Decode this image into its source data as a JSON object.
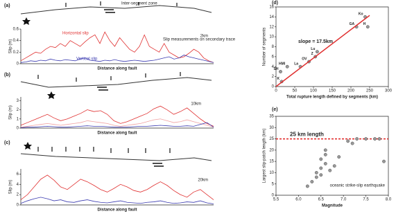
{
  "chart_data": [
    {
      "type": "line",
      "panel_label": "(a)",
      "ylabel": "Slip (m)",
      "xlabel": "Distance along fault",
      "ylim": [
        0,
        0.6
      ],
      "yticks": [
        0,
        0.2,
        0.4,
        0.6
      ],
      "annotations": [
        "Inter-segment zone",
        "Slip measurements on secondary trace",
        "2km"
      ],
      "series": [
        {
          "name": "Horizontal slip",
          "color": "#e03030",
          "values": [
            0.05,
            0.1,
            0.15,
            0.2,
            0.18,
            0.25,
            0.3,
            0.28,
            0.35,
            0.3,
            0.4,
            0.35,
            0.3,
            0.38,
            0.45,
            0.5,
            0.35,
            0.55,
            0.4,
            0.3,
            0.45,
            0.35,
            0.25,
            0.2,
            0.3,
            0.5,
            0.3,
            0.25,
            0.2,
            0.35,
            0.2,
            0.15,
            0.1,
            0.12,
            0.18,
            0.25,
            0.2,
            0.1,
            0.05,
            0.02
          ]
        },
        {
          "name": "Vertical slip",
          "color": "#3a3ab0",
          "values": [
            0.02,
            0.03,
            0.05,
            0.04,
            0.06,
            0.05,
            0.08,
            0.06,
            0.05,
            0.07,
            0.06,
            0.05,
            0.08,
            0.1,
            0.06,
            0.05,
            0.04,
            0.06,
            0.05,
            0.07,
            0.05,
            0.04,
            0.05,
            0.06,
            0.05,
            0.04,
            0.05,
            0.06,
            0.08,
            0.1,
            0.12,
            0.08,
            0.1,
            0.15,
            0.12,
            0.1,
            0.08,
            0.06,
            0.04,
            0.02
          ]
        }
      ]
    },
    {
      "type": "line",
      "panel_label": "(b)",
      "ylabel": "Slip (m)",
      "xlabel": "Distance along fault",
      "ylim": [
        0,
        3.4
      ],
      "yticks": [
        0,
        1,
        2,
        3
      ],
      "annotations": [
        "10km"
      ],
      "series": [
        {
          "color": "#e03030",
          "values": [
            0.3,
            0.6,
            0.9,
            1.2,
            1.5,
            1.1,
            0.8,
            1.0,
            1.3,
            1.6,
            2.0,
            1.8,
            1.9,
            1.5,
            0.8,
            0.5,
            0.7,
            1.0,
            1.3,
            1.6,
            2.1,
            2.4,
            2.0,
            1.5,
            1.8,
            2.2,
            1.6,
            1.0,
            0.5,
            0.2
          ]
        },
        {
          "color": "#f0a0a0",
          "values": [
            0.1,
            0.2,
            0.3,
            0.4,
            0.5,
            0.4,
            0.3,
            0.4,
            0.5,
            0.6,
            0.8,
            0.7,
            0.6,
            0.5,
            0.3,
            0.2,
            0.3,
            0.4,
            0.5,
            0.7,
            0.9,
            1.0,
            0.8,
            0.6,
            0.7,
            0.9,
            0.7,
            0.5,
            0.3,
            0.1
          ]
        },
        {
          "color": "#3a3ab0",
          "values": [
            0.05,
            0.1,
            0.1,
            0.15,
            0.2,
            0.15,
            0.1,
            0.1,
            0.15,
            0.2,
            0.25,
            0.2,
            0.2,
            0.15,
            0.1,
            0.1,
            0.1,
            0.15,
            0.2,
            0.2,
            0.25,
            0.3,
            0.25,
            0.2,
            0.2,
            0.25,
            0.2,
            0.4,
            0.6,
            0.1
          ]
        }
      ]
    },
    {
      "type": "line",
      "panel_label": "(c)",
      "ylabel": "Slip (m)",
      "xlabel": "Distance along fault",
      "ylim": [
        0,
        7
      ],
      "yticks": [
        0,
        2,
        4,
        6
      ],
      "annotations": [
        "20km"
      ],
      "series": [
        {
          "color": "#e03030",
          "values": [
            1.0,
            2.0,
            3.5,
            5.0,
            5.8,
            4.8,
            3.5,
            3.0,
            4.0,
            5.0,
            4.5,
            3.8,
            3.0,
            2.5,
            3.2,
            4.0,
            3.5,
            2.8,
            2.5,
            3.0,
            3.8,
            4.5,
            3.8,
            2.8,
            2.0,
            1.5,
            2.5,
            3.0,
            2.0,
            1.0
          ]
        },
        {
          "color": "#3a3ab0",
          "values": [
            0.3,
            0.8,
            1.2,
            1.5,
            1.2,
            0.8,
            1.0,
            0.6,
            0.5,
            0.8,
            1.0,
            0.7,
            0.5,
            0.4,
            0.6,
            0.8,
            0.5,
            0.4,
            0.3,
            0.5,
            0.6,
            0.8,
            0.5,
            0.3,
            0.4,
            0.6,
            0.5,
            0.8,
            0.4,
            0.2
          ]
        }
      ]
    },
    {
      "type": "scatter",
      "panel_label": "(d)",
      "xlabel": "Total rupture length defined by segments (km)",
      "ylabel": "Number of segments",
      "xlim": [
        0,
        300
      ],
      "xticks": [
        0,
        50,
        100,
        150,
        200,
        250,
        300
      ],
      "ylim": [
        0,
        16
      ],
      "yticks": [
        0,
        2,
        4,
        6,
        8,
        10,
        12,
        14,
        16
      ],
      "annotations": [
        "slope = 17.5km"
      ],
      "series": [
        {
          "type": "scatter",
          "color": "#999999",
          "x": [
            15,
            12,
            30,
            65,
            88,
            105,
            110,
            215,
            238,
            245
          ],
          "values": [
            1,
            3,
            4,
            4,
            5,
            6,
            7,
            12,
            14,
            12
          ],
          "point_labels": [
            "K",
            "SH",
            "HMI",
            "La",
            "OV",
            "Z",
            "Lu",
            "GA",
            "Ko",
            "H"
          ]
        },
        {
          "type": "line",
          "color": "#e03030",
          "x": [
            0,
            250
          ],
          "values": [
            0,
            14.3
          ]
        }
      ]
    },
    {
      "type": "scatter",
      "panel_label": "(e)",
      "xlabel": "Magnitude",
      "ylabel": "Largest slip-patch length (km)",
      "xlim": [
        5.5,
        8.0
      ],
      "xticks": [
        5.5,
        {
          "value": 6,
          "label": "6.0"
        },
        6.5,
        {
          "value": 7,
          "label": "7.0"
        },
        7.5,
        {
          "value": 8,
          "label": "8.0"
        }
      ],
      "ylim": [
        0,
        35
      ],
      "yticks": [
        0,
        5,
        10,
        15,
        20,
        25,
        30,
        35
      ],
      "annotations": [
        "oceanic strike-slip earthquake"
      ],
      "reference_line": {
        "value": 25,
        "label": "25 km length",
        "color": "#e02020"
      },
      "series": [
        {
          "type": "scatter",
          "color": "#999999",
          "x": [
            6.2,
            6.3,
            6.4,
            6.4,
            6.5,
            6.5,
            6.6,
            6.5,
            6.6,
            6.7,
            6.8,
            6.9,
            6.6,
            7.1,
            7.2,
            7.3,
            7.5,
            7.7,
            7.8,
            7.9
          ],
          "values": [
            4,
            6,
            8,
            10,
            12,
            9,
            14,
            16,
            18,
            11,
            13,
            17,
            20,
            24,
            23,
            25,
            25,
            25,
            25,
            15
          ]
        }
      ]
    }
  ]
}
